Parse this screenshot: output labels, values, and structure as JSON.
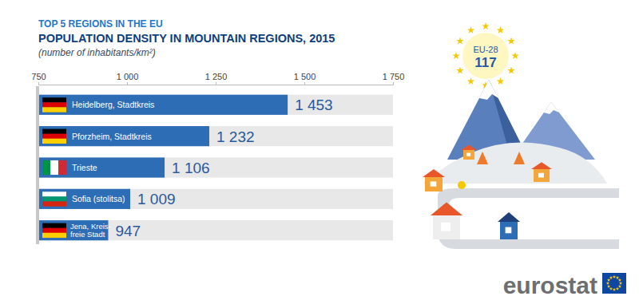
{
  "chart_data": {
    "type": "bar",
    "orientation": "horizontal",
    "suptitle": "TOP 5 REGIONS IN THE EU",
    "title": "POPULATION DENSITY IN MOUNTAIN REGIONS, 2015",
    "subtitle": "(number of inhabitants/km²)",
    "categories": [
      "Heidelberg, Stadtkreis",
      "Pforzheim, Stadtkreis",
      "Trieste",
      "Sofia (stolitsa)",
      "Jena, Kreis-freie Stadt"
    ],
    "values": [
      1453,
      1232,
      1106,
      1009,
      947
    ],
    "value_labels": [
      "1 453",
      "1 232",
      "1 106",
      "1 009",
      "947"
    ],
    "data_labels": true,
    "color": "#2d6db5",
    "xlim": [
      750,
      1750
    ],
    "xticks": [
      750,
      {
        "value": 1000,
        "label": "1 000"
      },
      {
        "value": 1250,
        "label": "1 250"
      },
      {
        "value": 1500,
        "label": "1 500"
      },
      {
        "value": 1750,
        "label": "1 750"
      }
    ],
    "grid": false,
    "annotations": [
      {
        "label": "EU-28",
        "value": 117
      }
    ],
    "source": "eurostat"
  }
}
